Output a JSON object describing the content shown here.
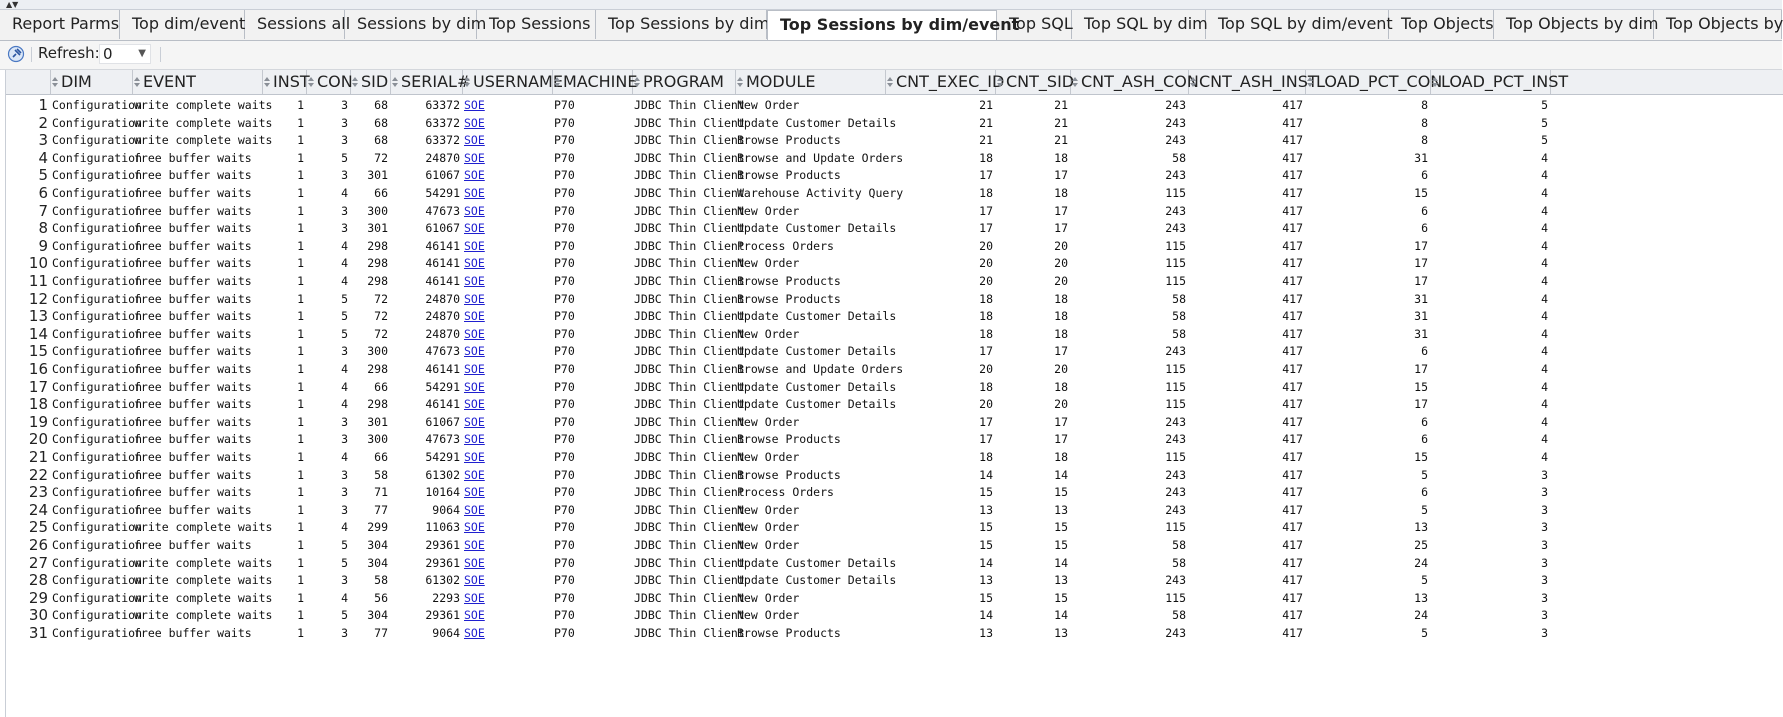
{
  "tabs": [
    {
      "label": "Report Parms",
      "active": false
    },
    {
      "label": "Top dim/event",
      "active": false
    },
    {
      "label": "Sessions all",
      "active": false
    },
    {
      "label": "Sessions by dim",
      "active": false
    },
    {
      "label": "Top Sessions",
      "active": false
    },
    {
      "label": "Top Sessions by dim",
      "active": false
    },
    {
      "label": "Top Sessions by dim/event",
      "active": true
    },
    {
      "label": "Top SQL",
      "active": false
    },
    {
      "label": "Top SQL by dim",
      "active": false
    },
    {
      "label": "Top SQL by dim/event",
      "active": false
    },
    {
      "label": "Top Objects",
      "active": false
    },
    {
      "label": "Top Objects by dim",
      "active": false
    },
    {
      "label": "Top Objects by",
      "active": false
    }
  ],
  "toolbar": {
    "refresh_label": "Refresh:",
    "refresh_value": "0"
  },
  "columns": [
    "DIM",
    "EVENT",
    "INST",
    "CON",
    "SID",
    "SERIAL#",
    "USERNAME",
    "MACHINE",
    "PROGRAM",
    "MODULE",
    "CNT_EXEC_ID",
    "CNT_SID",
    "CNT_ASH_CON",
    "CNT_ASH_INST",
    "LOAD_PCT_CON",
    "LOAD_PCT_INST"
  ],
  "rows": [
    [
      "1",
      "Configuration",
      "write complete waits",
      "1",
      "3",
      "68",
      "63372",
      "SOE",
      "P70",
      "JDBC Thin Client",
      "New Order",
      "21",
      "21",
      "243",
      "417",
      "8",
      "5"
    ],
    [
      "2",
      "Configuration",
      "write complete waits",
      "1",
      "3",
      "68",
      "63372",
      "SOE",
      "P70",
      "JDBC Thin Client",
      "Update Customer Details",
      "21",
      "21",
      "243",
      "417",
      "8",
      "5"
    ],
    [
      "3",
      "Configuration",
      "write complete waits",
      "1",
      "3",
      "68",
      "63372",
      "SOE",
      "P70",
      "JDBC Thin Client",
      "Browse Products",
      "21",
      "21",
      "243",
      "417",
      "8",
      "5"
    ],
    [
      "4",
      "Configuration",
      "free buffer waits",
      "1",
      "5",
      "72",
      "24870",
      "SOE",
      "P70",
      "JDBC Thin Client",
      "Browse and Update Orders",
      "18",
      "18",
      "58",
      "417",
      "31",
      "4"
    ],
    [
      "5",
      "Configuration",
      "free buffer waits",
      "1",
      "3",
      "301",
      "61067",
      "SOE",
      "P70",
      "JDBC Thin Client",
      "Browse Products",
      "17",
      "17",
      "243",
      "417",
      "6",
      "4"
    ],
    [
      "6",
      "Configuration",
      "free buffer waits",
      "1",
      "4",
      "66",
      "54291",
      "SOE",
      "P70",
      "JDBC Thin Client",
      "Warehouse Activity Query",
      "18",
      "18",
      "115",
      "417",
      "15",
      "4"
    ],
    [
      "7",
      "Configuration",
      "free buffer waits",
      "1",
      "3",
      "300",
      "47673",
      "SOE",
      "P70",
      "JDBC Thin Client",
      "New Order",
      "17",
      "17",
      "243",
      "417",
      "6",
      "4"
    ],
    [
      "8",
      "Configuration",
      "free buffer waits",
      "1",
      "3",
      "301",
      "61067",
      "SOE",
      "P70",
      "JDBC Thin Client",
      "Update Customer Details",
      "17",
      "17",
      "243",
      "417",
      "6",
      "4"
    ],
    [
      "9",
      "Configuration",
      "free buffer waits",
      "1",
      "4",
      "298",
      "46141",
      "SOE",
      "P70",
      "JDBC Thin Client",
      "Process Orders",
      "20",
      "20",
      "115",
      "417",
      "17",
      "4"
    ],
    [
      "10",
      "Configuration",
      "free buffer waits",
      "1",
      "4",
      "298",
      "46141",
      "SOE",
      "P70",
      "JDBC Thin Client",
      "New Order",
      "20",
      "20",
      "115",
      "417",
      "17",
      "4"
    ],
    [
      "11",
      "Configuration",
      "free buffer waits",
      "1",
      "4",
      "298",
      "46141",
      "SOE",
      "P70",
      "JDBC Thin Client",
      "Browse Products",
      "20",
      "20",
      "115",
      "417",
      "17",
      "4"
    ],
    [
      "12",
      "Configuration",
      "free buffer waits",
      "1",
      "5",
      "72",
      "24870",
      "SOE",
      "P70",
      "JDBC Thin Client",
      "Browse Products",
      "18",
      "18",
      "58",
      "417",
      "31",
      "4"
    ],
    [
      "13",
      "Configuration",
      "free buffer waits",
      "1",
      "5",
      "72",
      "24870",
      "SOE",
      "P70",
      "JDBC Thin Client",
      "Update Customer Details",
      "18",
      "18",
      "58",
      "417",
      "31",
      "4"
    ],
    [
      "14",
      "Configuration",
      "free buffer waits",
      "1",
      "5",
      "72",
      "24870",
      "SOE",
      "P70",
      "JDBC Thin Client",
      "New Order",
      "18",
      "18",
      "58",
      "417",
      "31",
      "4"
    ],
    [
      "15",
      "Configuration",
      "free buffer waits",
      "1",
      "3",
      "300",
      "47673",
      "SOE",
      "P70",
      "JDBC Thin Client",
      "Update Customer Details",
      "17",
      "17",
      "243",
      "417",
      "6",
      "4"
    ],
    [
      "16",
      "Configuration",
      "free buffer waits",
      "1",
      "4",
      "298",
      "46141",
      "SOE",
      "P70",
      "JDBC Thin Client",
      "Browse and Update Orders",
      "20",
      "20",
      "115",
      "417",
      "17",
      "4"
    ],
    [
      "17",
      "Configuration",
      "free buffer waits",
      "1",
      "4",
      "66",
      "54291",
      "SOE",
      "P70",
      "JDBC Thin Client",
      "Update Customer Details",
      "18",
      "18",
      "115",
      "417",
      "15",
      "4"
    ],
    [
      "18",
      "Configuration",
      "free buffer waits",
      "1",
      "4",
      "298",
      "46141",
      "SOE",
      "P70",
      "JDBC Thin Client",
      "Update Customer Details",
      "20",
      "20",
      "115",
      "417",
      "17",
      "4"
    ],
    [
      "19",
      "Configuration",
      "free buffer waits",
      "1",
      "3",
      "301",
      "61067",
      "SOE",
      "P70",
      "JDBC Thin Client",
      "New Order",
      "17",
      "17",
      "243",
      "417",
      "6",
      "4"
    ],
    [
      "20",
      "Configuration",
      "free buffer waits",
      "1",
      "3",
      "300",
      "47673",
      "SOE",
      "P70",
      "JDBC Thin Client",
      "Browse Products",
      "17",
      "17",
      "243",
      "417",
      "6",
      "4"
    ],
    [
      "21",
      "Configuration",
      "free buffer waits",
      "1",
      "4",
      "66",
      "54291",
      "SOE",
      "P70",
      "JDBC Thin Client",
      "New Order",
      "18",
      "18",
      "115",
      "417",
      "15",
      "4"
    ],
    [
      "22",
      "Configuration",
      "free buffer waits",
      "1",
      "3",
      "58",
      "61302",
      "SOE",
      "P70",
      "JDBC Thin Client",
      "Browse Products",
      "14",
      "14",
      "243",
      "417",
      "5",
      "3"
    ],
    [
      "23",
      "Configuration",
      "free buffer waits",
      "1",
      "3",
      "71",
      "10164",
      "SOE",
      "P70",
      "JDBC Thin Client",
      "Process Orders",
      "15",
      "15",
      "243",
      "417",
      "6",
      "3"
    ],
    [
      "24",
      "Configuration",
      "free buffer waits",
      "1",
      "3",
      "77",
      "9064",
      "SOE",
      "P70",
      "JDBC Thin Client",
      "New Order",
      "13",
      "13",
      "243",
      "417",
      "5",
      "3"
    ],
    [
      "25",
      "Configuration",
      "write complete waits",
      "1",
      "4",
      "299",
      "11063",
      "SOE",
      "P70",
      "JDBC Thin Client",
      "New Order",
      "15",
      "15",
      "115",
      "417",
      "13",
      "3"
    ],
    [
      "26",
      "Configuration",
      "free buffer waits",
      "1",
      "5",
      "304",
      "29361",
      "SOE",
      "P70",
      "JDBC Thin Client",
      "New Order",
      "15",
      "15",
      "58",
      "417",
      "25",
      "3"
    ],
    [
      "27",
      "Configuration",
      "write complete waits",
      "1",
      "5",
      "304",
      "29361",
      "SOE",
      "P70",
      "JDBC Thin Client",
      "Update Customer Details",
      "14",
      "14",
      "58",
      "417",
      "24",
      "3"
    ],
    [
      "28",
      "Configuration",
      "write complete waits",
      "1",
      "3",
      "58",
      "61302",
      "SOE",
      "P70",
      "JDBC Thin Client",
      "Update Customer Details",
      "13",
      "13",
      "243",
      "417",
      "5",
      "3"
    ],
    [
      "29",
      "Configuration",
      "write complete waits",
      "1",
      "4",
      "56",
      "2293",
      "SOE",
      "P70",
      "JDBC Thin Client",
      "New Order",
      "15",
      "15",
      "115",
      "417",
      "13",
      "3"
    ],
    [
      "30",
      "Configuration",
      "write complete waits",
      "1",
      "5",
      "304",
      "29361",
      "SOE",
      "P70",
      "JDBC Thin Client",
      "New Order",
      "14",
      "14",
      "58",
      "417",
      "24",
      "3"
    ],
    [
      "31",
      "Configuration",
      "free buffer waits",
      "1",
      "3",
      "77",
      "9064",
      "SOE",
      "P70",
      "JDBC Thin Client",
      "Browse Products",
      "13",
      "13",
      "243",
      "417",
      "5",
      "3"
    ]
  ]
}
